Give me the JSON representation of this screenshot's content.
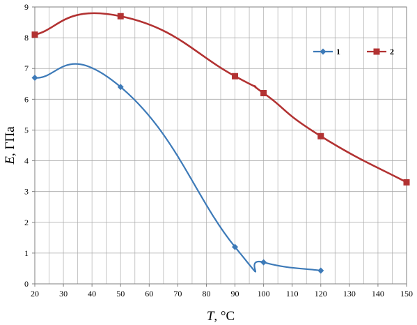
{
  "chart_data": {
    "type": "line",
    "xlabel_var": "T",
    "xlabel_unit": ", °C",
    "ylabel_var": "E",
    "ylabel_unit": ", ГПа",
    "xlim": [
      20,
      150
    ],
    "ylim": [
      0,
      9
    ],
    "x_ticks": [
      20,
      30,
      40,
      50,
      60,
      70,
      80,
      90,
      100,
      110,
      120,
      130,
      140,
      150
    ],
    "y_ticks": [
      0,
      1,
      2,
      3,
      4,
      5,
      6,
      7,
      8,
      9
    ],
    "grid": true,
    "legend_position": "top-right",
    "series": [
      {
        "name": "1",
        "color": "#3d7ab8",
        "marker": "diamond",
        "points": [
          [
            20,
            6.7
          ],
          [
            50,
            6.4
          ],
          [
            90,
            1.2
          ],
          [
            100,
            0.7
          ],
          [
            120,
            0.43
          ]
        ]
      },
      {
        "name": "2",
        "color": "#b23232",
        "marker": "square",
        "points": [
          [
            20,
            8.1
          ],
          [
            50,
            8.7
          ],
          [
            90,
            6.75
          ],
          [
            100,
            6.2
          ],
          [
            120,
            4.8
          ],
          [
            150,
            3.3
          ]
        ]
      }
    ]
  }
}
